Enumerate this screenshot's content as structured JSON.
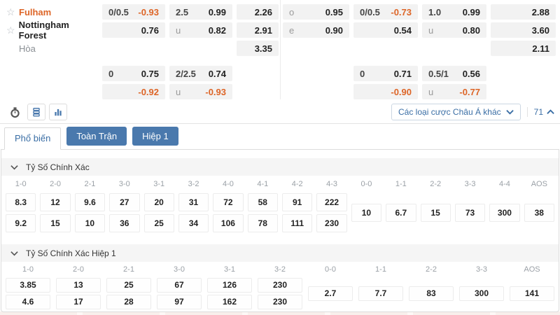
{
  "colors": {
    "accent_orange": "#dd6527",
    "link_blue": "#3a6ea5",
    "button_blue": "#4a79ad",
    "cell_gray": "#f2f2f2"
  },
  "odds": {
    "main": {
      "r1": {
        "team": "Fulham",
        "ah_line": "0/0.5",
        "ah": "-0.93",
        "ou_line": "2.5",
        "ou": "0.99",
        "x12": "2.26",
        "oe_line": "o",
        "oe": "0.95",
        "ah2_line": "0/0.5",
        "ah2": "-0.73",
        "ou2_line": "1.0",
        "ou2": "0.99",
        "x12b": "2.88"
      },
      "r2": {
        "team": "Nottingham Forest",
        "ah": "0.76",
        "ou_line": "u",
        "ou": "0.82",
        "x12": "2.91",
        "oe_line": "e",
        "oe": "0.90",
        "ah2": "0.54",
        "ou2_line": "u",
        "ou2": "0.80",
        "x12b": "3.60"
      },
      "r3": {
        "team": "Hòa",
        "x12": "3.35",
        "x12b": "2.11"
      }
    },
    "extra": {
      "r1": {
        "ah_line": "0",
        "ah": "0.75",
        "ou_line": "2/2.5",
        "ou": "0.74",
        "ah2_line": "0",
        "ah2": "0.71",
        "ou2_line": "0.5/1",
        "ou2": "0.56"
      },
      "r2": {
        "ah": "-0.92",
        "ou_line": "u",
        "ou": "-0.93",
        "ah2": "-0.90",
        "ou2_line": "u",
        "ou2": "-0.77"
      }
    },
    "star_glyph": "☆"
  },
  "toolbar": {
    "icons": [
      "stopwatch-icon",
      "markets-list-icon",
      "bar-chart-icon"
    ],
    "dropdown_label": "Các loại cược Châu Á khác",
    "market_count": "71"
  },
  "tabs": {
    "popular": "Phổ biến",
    "full_time": "Toàn Trận",
    "first_half": "Hiệp 1"
  },
  "sections": [
    {
      "title": "Tỷ Số Chính Xác",
      "home_away_columns": [
        "1-0",
        "2-0",
        "2-1",
        "3-0",
        "3-1",
        "3-2",
        "4-0",
        "4-1",
        "4-2",
        "4-3"
      ],
      "home_odds": [
        "8.3",
        "12",
        "9.6",
        "27",
        "20",
        "31",
        "72",
        "58",
        "91",
        "222"
      ],
      "away_odds": [
        "9.2",
        "15",
        "10",
        "36",
        "25",
        "34",
        "106",
        "78",
        "111",
        "230"
      ],
      "draw_columns": [
        "0-0",
        "1-1",
        "2-2",
        "3-3",
        "4-4",
        "AOS"
      ],
      "draw_odds": [
        "10",
        "6.7",
        "15",
        "73",
        "300",
        "38"
      ]
    },
    {
      "title": "Tỷ Số Chính Xác Hiệp 1",
      "home_away_columns": [
        "1-0",
        "2-0",
        "2-1",
        "3-0",
        "3-1",
        "3-2"
      ],
      "home_odds": [
        "3.85",
        "13",
        "25",
        "67",
        "126",
        "230"
      ],
      "away_odds": [
        "4.6",
        "17",
        "28",
        "97",
        "162",
        "230"
      ],
      "draw_columns": [
        "0-0",
        "1-1",
        "2-2",
        "3-3",
        "AOS"
      ],
      "draw_odds": [
        "2.7",
        "7.7",
        "83",
        "300",
        "141"
      ]
    }
  ]
}
